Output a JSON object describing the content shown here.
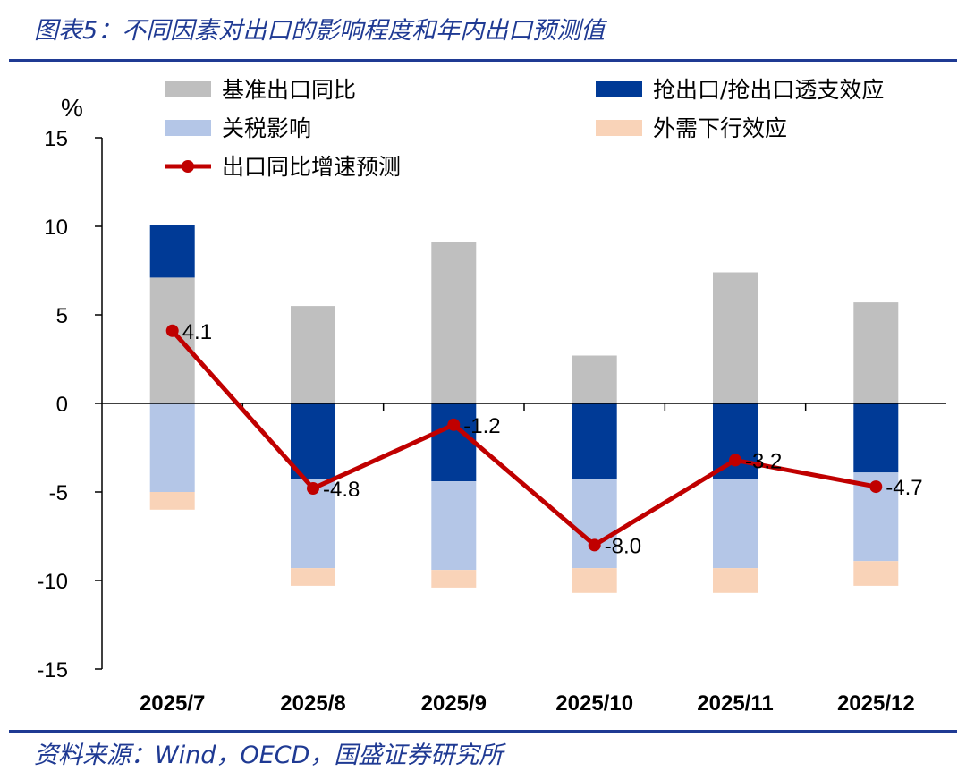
{
  "header": {
    "title": "图表5：不同因素对出口的影响程度和年内出口预测值"
  },
  "footer": {
    "source": "资料来源：Wind，OECD，国盛证券研究所"
  },
  "colors": {
    "base": "#bfbfbf",
    "front_loading": "#003a96",
    "tariff": "#b4c6e7",
    "external_demand": "#f9d3b8",
    "line": "#c00000",
    "rule": "#1f3a93"
  },
  "chart_data": {
    "type": "bar",
    "stacked": true,
    "ylabel": "%",
    "ylim": [
      -15,
      15
    ],
    "yticks": [
      15,
      10,
      5,
      0,
      -5,
      -10,
      -15
    ],
    "categories": [
      "2025/7",
      "2025/8",
      "2025/9",
      "2025/10",
      "2025/11",
      "2025/12"
    ],
    "legend_position": "top",
    "series": [
      {
        "name": "基准出口同比",
        "type": "bar",
        "color_key": "base",
        "values": [
          7.1,
          5.5,
          9.1,
          2.7,
          7.4,
          5.7
        ]
      },
      {
        "name": "抢出口/抢出口透支效应",
        "type": "bar",
        "color_key": "front_loading",
        "values": [
          3.0,
          -4.3,
          -4.4,
          -4.3,
          -4.3,
          -3.9
        ]
      },
      {
        "name": "关税影响",
        "type": "bar",
        "color_key": "tariff",
        "values": [
          -5.0,
          -5.0,
          -5.0,
          -5.0,
          -5.0,
          -5.0
        ]
      },
      {
        "name": "外需下行效应",
        "type": "bar",
        "color_key": "external_demand",
        "values": [
          -1.0,
          -1.0,
          -1.0,
          -1.4,
          -1.4,
          -1.4
        ]
      },
      {
        "name": "出口同比增速预测",
        "type": "line",
        "color_key": "line",
        "values": [
          4.1,
          -4.8,
          -1.2,
          -8.0,
          -3.2,
          -4.7
        ],
        "labels": [
          "4.1",
          "-4.8",
          "-1.2",
          "-8.0",
          "-3.2",
          "-4.7"
        ]
      }
    ]
  }
}
